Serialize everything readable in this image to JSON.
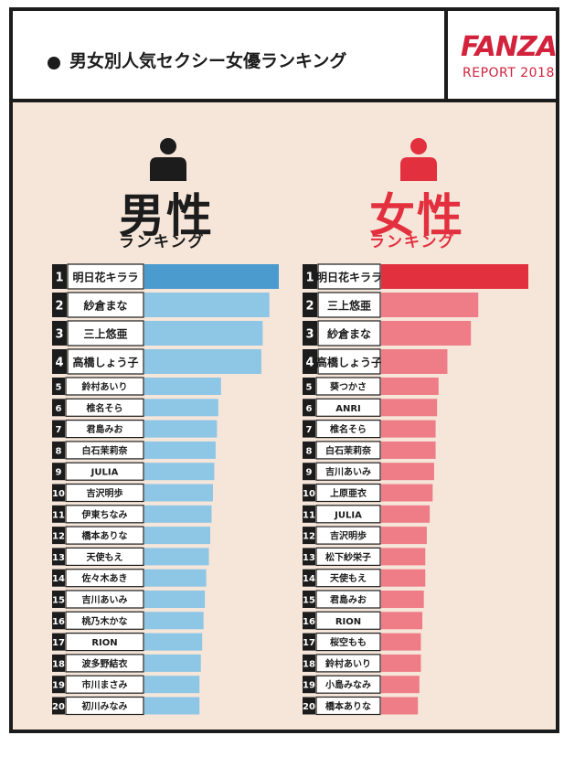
{
  "header": {
    "title": "男女別人気セクシー女優ランキング",
    "logo_brand": "FANZA",
    "logo_sub": "REPORT 2018"
  },
  "colors": {
    "male_bar": "#8ec6e6",
    "male_top_bar": "#4b9bcf",
    "female_bar": "#ef7d87",
    "female_top_bar": "#e3303f",
    "background": "#f6e6da",
    "male_icon": "#1c1c1c",
    "female_icon": "#e3303f"
  },
  "chart_data": [
    {
      "type": "bar",
      "orientation": "horizontal",
      "title": "男性",
      "subtitle": "ランキング",
      "ranks": [
        1,
        2,
        3,
        4,
        5,
        6,
        7,
        8,
        9,
        10,
        11,
        12,
        13,
        14,
        15,
        16,
        17,
        18,
        19,
        20
      ],
      "categories": [
        "明日花キララ",
        "紗倉まな",
        "三上悠亜",
        "高橋しょう子",
        "鈴村あいり",
        "椎名そら",
        "君島みお",
        "白石茉莉奈",
        "JULIA",
        "吉沢明歩",
        "伊東ちなみ",
        "橋本ありな",
        "天使もえ",
        "佐々木あき",
        "吉川あいみ",
        "桃乃木かな",
        "RION",
        "波多野結衣",
        "市川まさみ",
        "初川みなみ"
      ],
      "values": [
        100,
        93,
        88,
        87,
        57,
        55,
        54,
        53,
        52,
        51,
        50,
        49,
        48,
        46,
        45,
        44,
        43,
        42,
        41,
        41
      ]
    },
    {
      "type": "bar",
      "orientation": "horizontal",
      "title": "女性",
      "subtitle": "ランキング",
      "ranks": [
        1,
        2,
        3,
        4,
        5,
        6,
        7,
        8,
        9,
        10,
        11,
        12,
        13,
        14,
        15,
        16,
        17,
        18,
        19,
        20
      ],
      "categories": [
        "明日花キララ",
        "三上悠亜",
        "紗倉まな",
        "高橋しょう子",
        "葵つかさ",
        "ANRI",
        "椎名そら",
        "白石茉莉奈",
        "吉川あいみ",
        "上原亜衣",
        "JULIA",
        "吉沢明歩",
        "松下紗栄子",
        "天使もえ",
        "君島みお",
        "RION",
        "桜空もも",
        "鈴村あいり",
        "小島みなみ",
        "橋本ありな"
      ],
      "values": [
        100,
        66,
        61,
        45,
        39,
        38,
        37,
        37,
        36,
        35,
        33,
        31,
        30,
        30,
        29,
        28,
        27,
        27,
        26,
        25
      ]
    }
  ]
}
